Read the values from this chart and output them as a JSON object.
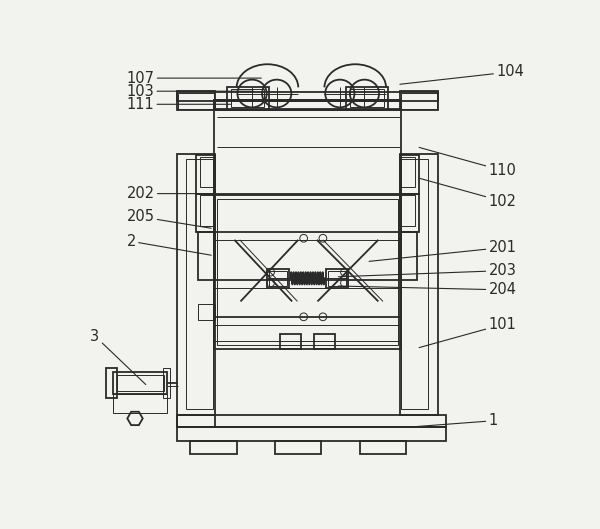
{
  "bg_color": "#f2f2ee",
  "line_color": "#2a2a2a",
  "lw": 1.3,
  "tlw": 0.7,
  "fig_width": 6.0,
  "fig_height": 5.29,
  "label_fontsize": 10.5
}
